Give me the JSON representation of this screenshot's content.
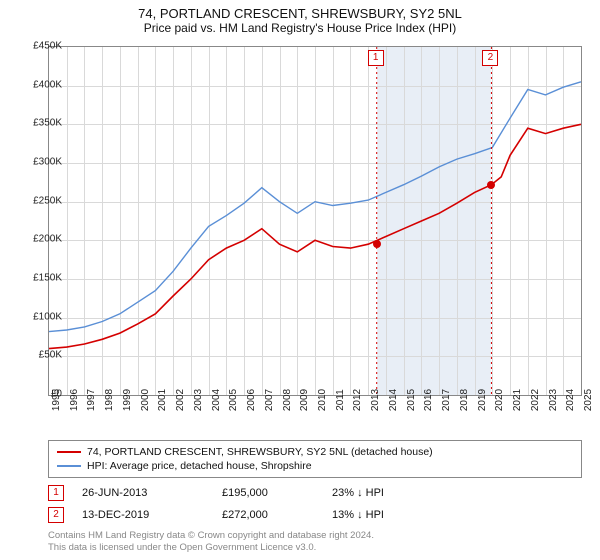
{
  "title": "74, PORTLAND CRESCENT, SHREWSBURY, SY2 5NL",
  "subtitle": "Price paid vs. HM Land Registry's House Price Index (HPI)",
  "chart": {
    "type": "line",
    "x_min": 1995,
    "x_max": 2025,
    "y_min": 0,
    "y_max": 450000,
    "y_ticks": [
      0,
      50000,
      100000,
      150000,
      200000,
      250000,
      300000,
      350000,
      400000,
      450000
    ],
    "y_tick_labels": [
      "£0",
      "£50K",
      "£100K",
      "£150K",
      "£200K",
      "£250K",
      "£300K",
      "£350K",
      "£400K",
      "£450K"
    ],
    "x_ticks": [
      1995,
      1996,
      1997,
      1998,
      1999,
      2000,
      2001,
      2002,
      2003,
      2004,
      2005,
      2006,
      2007,
      2008,
      2009,
      2010,
      2011,
      2012,
      2013,
      2014,
      2015,
      2016,
      2017,
      2018,
      2019,
      2020,
      2021,
      2022,
      2023,
      2024,
      2025
    ],
    "shaded_region": {
      "from": 2013.48,
      "to": 2019.95,
      "color": "#e8eef6"
    },
    "grid_color": "#d9d9d9",
    "series": [
      {
        "name": "property",
        "label": "74, PORTLAND CRESCENT, SHREWSBURY, SY2 5NL (detached house)",
        "color": "#d40000",
        "width": 1.6,
        "points": [
          [
            1995,
            60000
          ],
          [
            1996,
            62000
          ],
          [
            1997,
            66000
          ],
          [
            1998,
            72000
          ],
          [
            1999,
            80000
          ],
          [
            2000,
            92000
          ],
          [
            2001,
            105000
          ],
          [
            2002,
            128000
          ],
          [
            2003,
            150000
          ],
          [
            2004,
            175000
          ],
          [
            2005,
            190000
          ],
          [
            2006,
            200000
          ],
          [
            2007,
            215000
          ],
          [
            2008,
            195000
          ],
          [
            2009,
            185000
          ],
          [
            2010,
            200000
          ],
          [
            2011,
            192000
          ],
          [
            2012,
            190000
          ],
          [
            2013,
            195000
          ],
          [
            2014,
            205000
          ],
          [
            2015,
            215000
          ],
          [
            2016,
            225000
          ],
          [
            2017,
            235000
          ],
          [
            2018,
            248000
          ],
          [
            2019,
            262000
          ],
          [
            2019.95,
            272000
          ],
          [
            2020.5,
            282000
          ],
          [
            2021,
            310000
          ],
          [
            2022,
            345000
          ],
          [
            2023,
            338000
          ],
          [
            2024,
            345000
          ],
          [
            2025,
            350000
          ]
        ]
      },
      {
        "name": "hpi",
        "label": "HPI: Average price, detached house, Shropshire",
        "color": "#5a8fd6",
        "width": 1.4,
        "points": [
          [
            1995,
            82000
          ],
          [
            1996,
            84000
          ],
          [
            1997,
            88000
          ],
          [
            1998,
            95000
          ],
          [
            1999,
            105000
          ],
          [
            2000,
            120000
          ],
          [
            2001,
            135000
          ],
          [
            2002,
            160000
          ],
          [
            2003,
            190000
          ],
          [
            2004,
            218000
          ],
          [
            2005,
            232000
          ],
          [
            2006,
            248000
          ],
          [
            2007,
            268000
          ],
          [
            2008,
            250000
          ],
          [
            2009,
            235000
          ],
          [
            2010,
            250000
          ],
          [
            2011,
            245000
          ],
          [
            2012,
            248000
          ],
          [
            2013,
            252000
          ],
          [
            2014,
            262000
          ],
          [
            2015,
            272000
          ],
          [
            2016,
            283000
          ],
          [
            2017,
            295000
          ],
          [
            2018,
            305000
          ],
          [
            2019,
            312000
          ],
          [
            2020,
            320000
          ],
          [
            2021,
            358000
          ],
          [
            2022,
            395000
          ],
          [
            2023,
            388000
          ],
          [
            2024,
            398000
          ],
          [
            2025,
            405000
          ]
        ]
      }
    ],
    "markers": [
      {
        "num": "1",
        "x": 2013.48,
        "y_top": true,
        "sale_y": 195000,
        "dot_color": "#d40000"
      },
      {
        "num": "2",
        "x": 2019.95,
        "y_top": true,
        "sale_y": 272000,
        "dot_color": "#d40000"
      }
    ]
  },
  "legend": {
    "items": [
      {
        "color": "#d40000",
        "label": "74, PORTLAND CRESCENT, SHREWSBURY, SY2 5NL (detached house)"
      },
      {
        "color": "#5a8fd6",
        "label": "HPI: Average price, detached house, Shropshire"
      }
    ]
  },
  "sales": [
    {
      "num": "1",
      "date": "26-JUN-2013",
      "price": "£195,000",
      "diff": "23% ↓ HPI"
    },
    {
      "num": "2",
      "date": "13-DEC-2019",
      "price": "£272,000",
      "diff": "13% ↓ HPI"
    }
  ],
  "license": {
    "line1": "Contains HM Land Registry data © Crown copyright and database right 2024.",
    "line2": "This data is licensed under the Open Government Licence v3.0."
  }
}
